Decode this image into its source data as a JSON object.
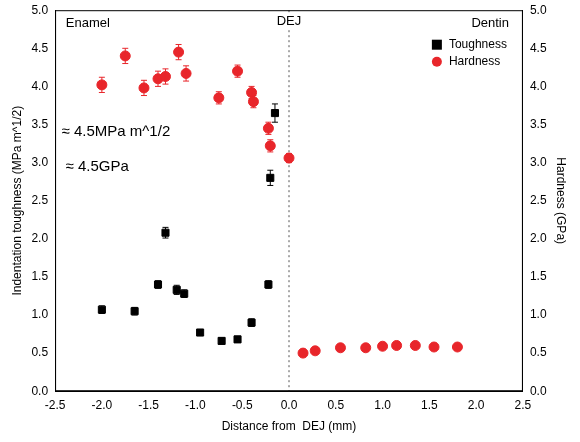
{
  "chart_data": {
    "type": "scatter",
    "x_label": "Distance from  DEJ (mm)",
    "y_label": "Indentation toughness (MPa m^1/2)",
    "y2_label": "Hardness (GPa)",
    "xlim": [
      -2.5,
      2.5
    ],
    "xticks": [
      {
        "value": -2.5,
        "label": "-2.5"
      },
      {
        "value": -2.0,
        "label": "-2.0"
      },
      {
        "value": -1.5,
        "label": "-1.5"
      },
      {
        "value": -1.0,
        "label": "-1.0"
      },
      {
        "value": -0.5,
        "label": "-0.5"
      },
      {
        "value": 0,
        "label": "0.0"
      },
      {
        "value": 0.5,
        "label": "0.5"
      },
      {
        "value": 1.0,
        "label": "1.0"
      },
      {
        "value": 1.5,
        "label": "1.5"
      },
      {
        "value": 2.0,
        "label": "2.0"
      },
      {
        "value": 2.5,
        "label": "2.5"
      }
    ],
    "ylim": [
      0,
      5
    ],
    "yticks": [
      {
        "value": 0,
        "label": "0.0"
      },
      {
        "value": 0.5,
        "label": "0.5"
      },
      {
        "value": 1.0,
        "label": "1.0"
      },
      {
        "value": 1.5,
        "label": "1.5"
      },
      {
        "value": 2.0,
        "label": "2.0"
      },
      {
        "value": 2.5,
        "label": "2.5"
      },
      {
        "value": 3.0,
        "label": "3.0"
      },
      {
        "value": 3.5,
        "label": "3.5"
      },
      {
        "value": 4.0,
        "label": "4.0"
      },
      {
        "value": 4.5,
        "label": "4.5"
      },
      {
        "value": 5.0,
        "label": "5.0"
      }
    ],
    "y2lim": [
      0,
      5
    ],
    "y2ticks": [
      {
        "value": 0,
        "label": "0.0"
      },
      {
        "value": 0.5,
        "label": "0.5"
      },
      {
        "value": 1.0,
        "label": "1.0"
      },
      {
        "value": 1.5,
        "label": "1.5"
      },
      {
        "value": 2.0,
        "label": "2.0"
      },
      {
        "value": 2.5,
        "label": "2.5"
      },
      {
        "value": 3.0,
        "label": "3.0"
      },
      {
        "value": 3.5,
        "label": "3.5"
      },
      {
        "value": 4.0,
        "label": "4.0"
      },
      {
        "value": 4.5,
        "label": "4.5"
      },
      {
        "value": 5.0,
        "label": "5.0"
      }
    ],
    "grid": false,
    "legend": "upper right",
    "series": [
      {
        "name": "Toughness",
        "color": "#000000",
        "marker": "square",
        "x": [
          -2.0,
          -1.65,
          -1.4,
          -1.32,
          -1.2,
          -1.12,
          -0.95,
          -0.72,
          -0.55,
          -0.4,
          -0.22,
          -0.2,
          -0.15
        ],
        "values": [
          1.07,
          1.05,
          1.4,
          2.08,
          1.33,
          1.28,
          0.77,
          0.66,
          0.68,
          0.9,
          1.4,
          2.8,
          3.65
        ],
        "errors": [
          0.05,
          0.05,
          0.05,
          0.07,
          0.06,
          0.05,
          0.04,
          0.04,
          0.04,
          0.05,
          0.05,
          0.1,
          0.12
        ]
      },
      {
        "name": "Hardness",
        "color": "#e8262b",
        "marker": "circle",
        "axis": "y2",
        "x": [
          -2.0,
          -1.75,
          -1.55,
          -1.4,
          -1.32,
          -1.18,
          -1.1,
          -0.75,
          -0.55,
          -0.4,
          -0.38,
          -0.22,
          -0.2,
          0.0,
          0.15,
          0.28,
          0.55,
          0.82,
          1.0,
          1.15,
          1.35,
          1.55,
          1.8
        ],
        "values": [
          4.02,
          4.4,
          3.98,
          4.1,
          4.13,
          4.45,
          4.17,
          3.85,
          4.2,
          3.92,
          3.8,
          3.45,
          3.22,
          3.06,
          0.5,
          0.53,
          0.57,
          0.57,
          0.59,
          0.6,
          0.6,
          0.58,
          0.58
        ],
        "errors": [
          0.1,
          0.1,
          0.1,
          0.1,
          0.1,
          0.1,
          0.1,
          0.08,
          0.08,
          0.08,
          0.08,
          0.08,
          0.08,
          0.06,
          0.03,
          0.03,
          0.03,
          0.03,
          0.03,
          0.03,
          0.03,
          0.03,
          0.03
        ]
      }
    ],
    "reference_lines": [
      {
        "x": 0,
        "line_style": "dotted"
      }
    ],
    "annotations": [
      {
        "text": "Enamel",
        "x": -2.15,
        "y": 4.82
      },
      {
        "text": "Dentin",
        "x": 2.15,
        "y": 4.82
      },
      {
        "text": "DEJ",
        "x": 0,
        "y": 4.85
      },
      {
        "text": "≈ 4.5MPa m^1/2",
        "x": -1.85,
        "y": 3.4
      },
      {
        "text": "≈ 4.5GPa",
        "x": -2.05,
        "y": 2.95
      }
    ]
  }
}
